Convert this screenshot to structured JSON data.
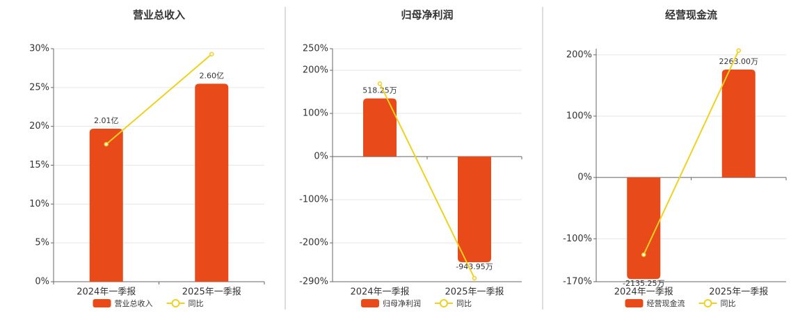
{
  "chart_data": [
    {
      "type": "combo",
      "title": "营业总收入",
      "categories": [
        "2024年一季报",
        "2025年一季报"
      ],
      "ylim": [
        0,
        30
      ],
      "yticks": [
        {
          "value": 0,
          "label": "0%"
        },
        {
          "value": 5,
          "label": "5%"
        },
        {
          "value": 10,
          "label": "10%"
        },
        {
          "value": 15,
          "label": "15%"
        },
        {
          "value": 20,
          "label": "20%"
        },
        {
          "value": 25,
          "label": "25%"
        },
        {
          "value": 30,
          "label": "30%"
        }
      ],
      "y2lim": [
        0,
        3.06
      ],
      "grid": true,
      "legend": "bottom",
      "series": [
        {
          "name": "营业总收入",
          "type": "bar",
          "axis": "y2",
          "color": "#e84a1a",
          "values": [
            2.01,
            2.6
          ],
          "value_labels": [
            "2.01亿",
            "2.60亿"
          ]
        },
        {
          "name": "同比",
          "type": "line",
          "color": "#f0d020",
          "values": [
            17.7,
            29.3
          ]
        }
      ]
    },
    {
      "type": "combo",
      "title": "归母净利润",
      "categories": [
        "2024年一季报",
        "2025年一季报"
      ],
      "ylim": [
        -290,
        250
      ],
      "yticks": [
        {
          "value": -290,
          "label": "-290%"
        },
        {
          "value": -200,
          "label": "-200%"
        },
        {
          "value": -100,
          "label": "-100%"
        },
        {
          "value": 0,
          "label": "0%"
        },
        {
          "value": 100,
          "label": "100%"
        },
        {
          "value": 200,
          "label": "200%"
        },
        {
          "value": 250,
          "label": "250%"
        }
      ],
      "y2lim": [
        -1118,
        962
      ],
      "grid": true,
      "legend": "bottom",
      "series": [
        {
          "name": "归母净利润",
          "type": "bar",
          "axis": "y2",
          "color": "#e84a1a",
          "values": [
            518.25,
            -943.95
          ],
          "value_labels": [
            "518.25万",
            "-943.95万"
          ]
        },
        {
          "name": "同比",
          "type": "line",
          "color": "#f0d020",
          "values": [
            169,
            -282
          ]
        }
      ]
    },
    {
      "type": "combo",
      "title": "经营现金流",
      "categories": [
        "2024年一季报",
        "2025年一季报"
      ],
      "ylim": [
        -170,
        210
      ],
      "yticks": [
        {
          "value": -170,
          "label": "-170%"
        },
        {
          "value": -100,
          "label": "-100%"
        },
        {
          "value": 0,
          "label": "0%"
        },
        {
          "value": 100,
          "label": "100%"
        },
        {
          "value": 200,
          "label": "200%"
        }
      ],
      "y2lim": [
        -2190,
        2700
      ],
      "grid": true,
      "legend": "bottom",
      "series": [
        {
          "name": "经营现金流",
          "type": "bar",
          "axis": "y2",
          "color": "#e84a1a",
          "values": [
            -2135.25,
            2263.0
          ],
          "value_labels": [
            "-2135.25万",
            "2263.00万"
          ]
        },
        {
          "name": "同比",
          "type": "line",
          "color": "#f0d020",
          "values": [
            -126,
            207
          ]
        }
      ]
    }
  ]
}
